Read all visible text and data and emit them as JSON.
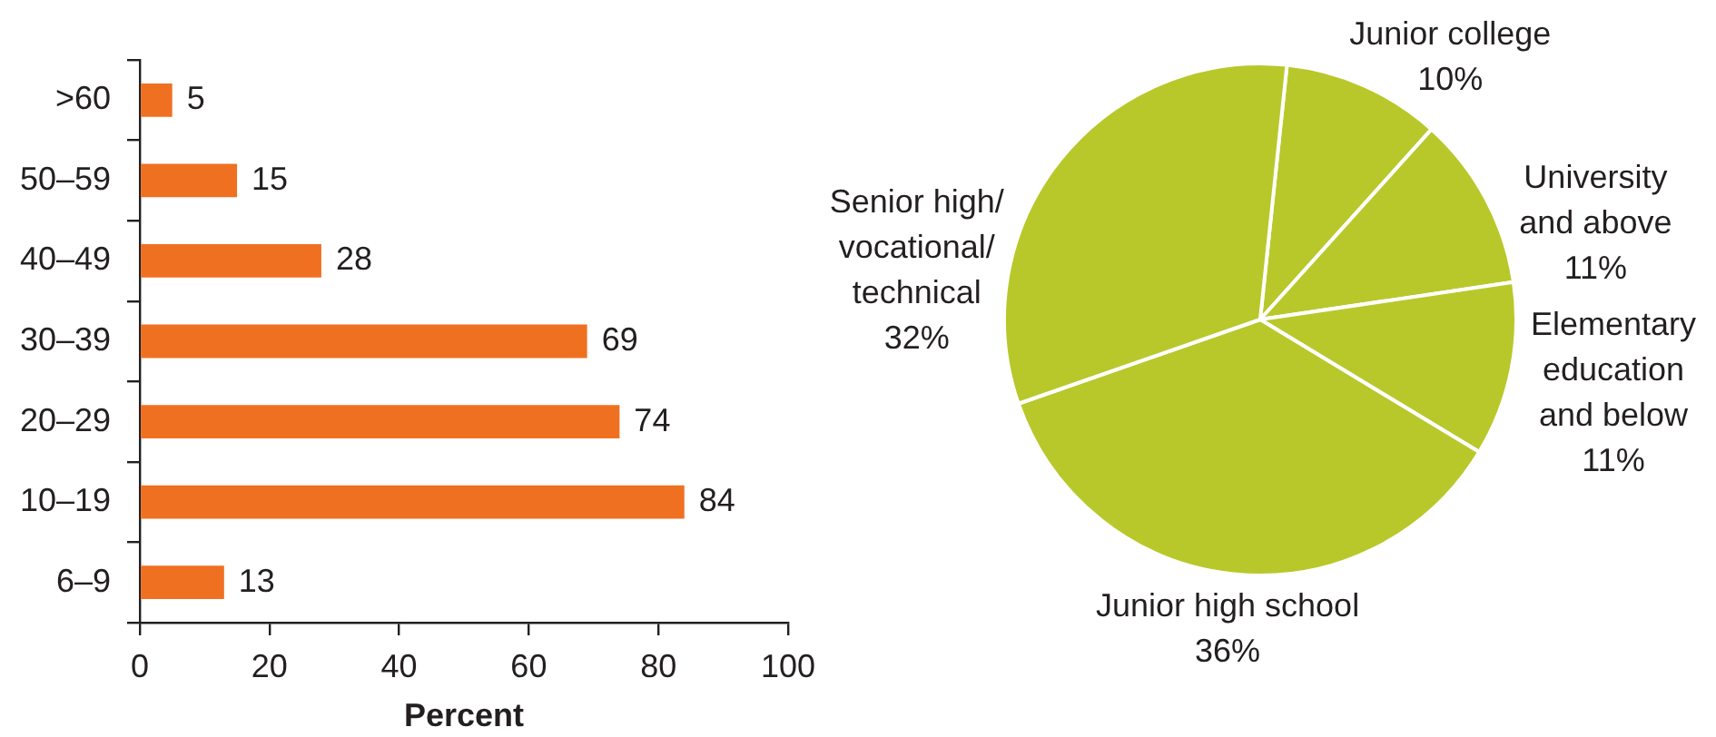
{
  "chart_data": [
    {
      "type": "bar",
      "orientation": "horizontal",
      "categories": [
        ">60",
        "50–59",
        "40–49",
        "30–39",
        "20–29",
        "10–19",
        "6–9"
      ],
      "values": [
        5,
        15,
        28,
        69,
        74,
        84,
        13
      ],
      "data_labels": true,
      "color": "#f07022",
      "xlim": [
        0,
        100
      ],
      "xticks": [
        0,
        20,
        40,
        60,
        80,
        100
      ],
      "xlabel": "Percent",
      "grid": false,
      "legend": false
    },
    {
      "type": "pie",
      "categories": [
        "Junior college",
        "University and above",
        "Elementary education and below",
        "Junior high school",
        "Senior high/vocational/technical"
      ],
      "values": [
        10,
        11,
        11,
        36,
        32
      ],
      "value_labels": [
        "10%",
        "11%",
        "11%",
        "36%",
        "32%"
      ],
      "colors": [
        "#b8c82a",
        "#b8c82a",
        "#b8c82a",
        "#b8c82a",
        "#b8c82a"
      ],
      "legend": false
    }
  ]
}
